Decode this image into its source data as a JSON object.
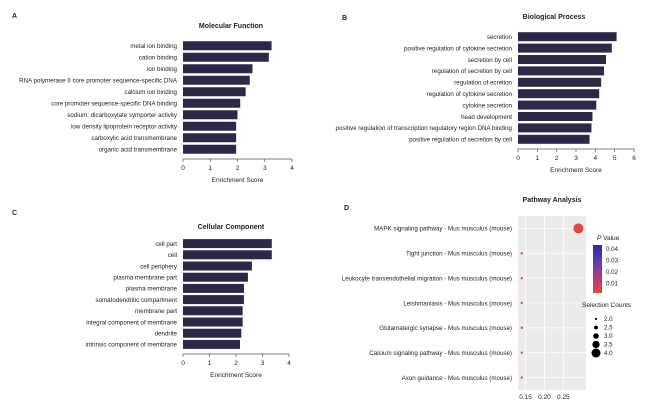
{
  "colors": {
    "bar": "#2e2848",
    "axis": "#555555",
    "text": "#222222",
    "panel_bg": "#ebebeb",
    "grid": "#ffffff",
    "point": "#e04646",
    "gradient": [
      "#e04646",
      "#b03a7e",
      "#5a3ab0",
      "#2d2aa0"
    ]
  },
  "chart_data": [
    {
      "panel": "A",
      "type": "bar",
      "orientation": "horizontal",
      "title": "Molecular Function",
      "xlabel": "Enrichment Score",
      "xlim": [
        0,
        4
      ],
      "xticks": [
        0,
        1,
        2,
        3,
        4
      ],
      "categories": [
        "metal ion binding",
        "cation binding",
        "ion binding",
        "RNA polymerase II core promoter sequence-specific DNA",
        "calcium ion binding",
        "core promoter sequence-specific DNA binding",
        "sodium: dicarboxylate symporter activity",
        "low density lipoprotein receptor activity",
        "carboxylic acid transmembrane",
        "organic acid transmembrane"
      ],
      "values": [
        3.25,
        3.15,
        2.55,
        2.45,
        2.3,
        2.1,
        2.0,
        1.95,
        1.95,
        1.95
      ]
    },
    {
      "panel": "B",
      "type": "bar",
      "orientation": "horizontal",
      "title": "Biological Process",
      "xlabel": "Enrichment Score",
      "xlim": [
        0,
        6
      ],
      "xticks": [
        0,
        1,
        2,
        3,
        4,
        5,
        6
      ],
      "categories": [
        "secretion",
        "positive regulation of cytokine secretion",
        "secretion by cell",
        "regulation of secretion by cell",
        "regulation of ecretion",
        "regulation of cytokine secretion",
        "cytokine secretion",
        "head development",
        "positive regulation of transcription regulatory region DNA binding",
        "positive regulation of secretion by cell"
      ],
      "values": [
        5.1,
        4.85,
        4.55,
        4.45,
        4.3,
        4.2,
        4.05,
        3.85,
        3.8,
        3.7
      ]
    },
    {
      "panel": "C",
      "type": "bar",
      "orientation": "horizontal",
      "title": "Cellular Component",
      "xlabel": "Enrichment Score",
      "xlim": [
        0,
        4
      ],
      "xticks": [
        0,
        1,
        2,
        3,
        4
      ],
      "categories": [
        "cell part",
        "cell",
        "cell periphery",
        "plasma membrane part",
        "plasma membrane",
        "somatodendritic compartment",
        "membrane part",
        "integral component of membrane",
        "dendrite",
        "intrinsic component of membrane"
      ],
      "values": [
        3.35,
        3.35,
        2.6,
        2.45,
        2.3,
        2.3,
        2.25,
        2.25,
        2.2,
        2.15
      ]
    },
    {
      "panel": "D",
      "type": "scatter",
      "title": "Pathway Analysis",
      "xlim": [
        0.13,
        0.31
      ],
      "xticks": [
        "0.15",
        "0.20",
        "0.25"
      ],
      "categories": [
        "MAPK signaling pathway - Mus musculus (mouse)",
        "Tight junction - Mus musculus (mouse)",
        "Leukocyte transendothelial migration - Mus musculus (mouse)",
        "Leishmaniasis - Mus musculus (mouse)",
        "Glutamatergic synapse - Mus musculus (mouse)",
        "Calcium signaling pathway - Mus musculus (mouse)",
        "Axon guidance - Mus musculus (mouse)"
      ],
      "x": [
        0.29,
        0.14,
        0.14,
        0.14,
        0.14,
        0.14,
        0.14
      ],
      "count": [
        4,
        2,
        2,
        2,
        2,
        2,
        2
      ],
      "legend_color": {
        "title_italic": "P",
        "title_rest": " Value",
        "ticks": [
          "0.04",
          "0.03",
          "0.02",
          "0.01"
        ]
      },
      "legend_size": {
        "title": "Selection Counts",
        "values": [
          "2.0",
          "2.5",
          "3.0",
          "3.5",
          "4.0"
        ]
      }
    }
  ]
}
